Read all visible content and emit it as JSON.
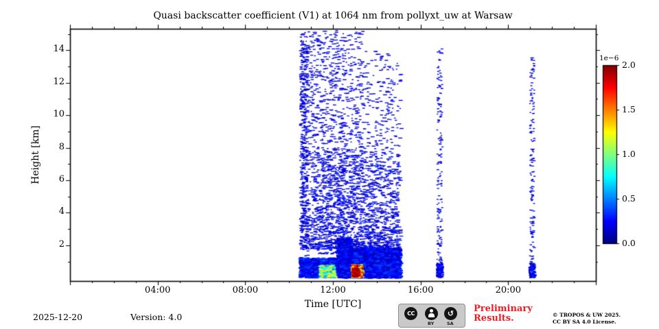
{
  "figure": {
    "background_color": "#ffffff",
    "footer": {
      "date": "2025-12-20",
      "version": "Version: 4.0",
      "preliminary_line1": "Preliminary",
      "preliminary_line2": "Results.",
      "preliminary_color": "#ed1c24",
      "copyright_line1": "© TROPOS & UW 2025.",
      "copyright_line2": "CC BY SA 4.0 License.",
      "license_badge": {
        "cc_label": "CC",
        "by_label": "BY",
        "sa_label": "SA",
        "sa_glyph": "↺"
      }
    }
  },
  "chart_data": {
    "type": "heatmap",
    "title": "Quasi backscatter coefficient (V1) at 1064 nm from pollyxt_uw at Warsaw",
    "xlabel": "Time [UTC]",
    "ylabel": "Height [km]",
    "xlim_hours": [
      0,
      24
    ],
    "ylim_km": [
      0,
      15.3
    ],
    "grid": false,
    "plot_background": "#ffffff",
    "point_color_low": "#0000e0",
    "xticks": [
      {
        "t": 4,
        "label": "04:00"
      },
      {
        "t": 8,
        "label": "08:00"
      },
      {
        "t": 12,
        "label": "12:00"
      },
      {
        "t": 16,
        "label": "16:00"
      },
      {
        "t": 20,
        "label": "20:00"
      }
    ],
    "yticks": [
      {
        "h": 2,
        "label": "2"
      },
      {
        "h": 4,
        "label": "4"
      },
      {
        "h": 6,
        "label": "6"
      },
      {
        "h": 8,
        "label": "8"
      },
      {
        "h": 10,
        "label": "10"
      },
      {
        "h": 12,
        "label": "12"
      },
      {
        "h": 14,
        "label": "14"
      }
    ],
    "colorbar": {
      "exponent_label": "1e−6",
      "vmin": 0.0,
      "vmax": 2.0,
      "colormap": "jet",
      "position": "right",
      "ticks": [
        {
          "v": 0.0,
          "label": "0.0"
        },
        {
          "v": 0.5,
          "label": "0.5"
        },
        {
          "v": 1.0,
          "label": "1.0"
        },
        {
          "v": 1.5,
          "label": "1.5"
        },
        {
          "v": 2.0,
          "label": "2.0"
        }
      ]
    },
    "regions": [
      {
        "name": "upper-speckle-early",
        "t": [
          10.45,
          13.3
        ],
        "h": [
          1.8,
          15.25
        ],
        "n": 1600,
        "v": [
          0.08,
          0.3
        ],
        "hbias": 1.35,
        "dash": [
          2,
          6
        ],
        "dh": 1.4
      },
      {
        "name": "upper-speckle-late",
        "t": [
          13.3,
          15.05
        ],
        "h": [
          1.8,
          14.0
        ],
        "n": 650,
        "v": [
          0.08,
          0.3
        ],
        "hbias": 1.9,
        "dash": [
          2,
          6
        ],
        "dh": 1.4
      },
      {
        "name": "left-edge-column",
        "t": [
          10.45,
          10.8
        ],
        "h": [
          1.2,
          14.6
        ],
        "n": 330,
        "v": [
          0.08,
          0.3
        ],
        "hbias": 1.0,
        "dash": [
          2,
          5
        ],
        "dh": 1.4
      },
      {
        "name": "mid-band",
        "t": [
          11.1,
          14.95
        ],
        "h": [
          1.5,
          7.8
        ],
        "n": 800,
        "v": [
          0.08,
          0.35
        ],
        "hbias": 1.3,
        "dash": [
          2,
          6
        ],
        "dh": 1.5
      },
      {
        "name": "bottom-band-left",
        "t": [
          10.42,
          12.3
        ],
        "h": [
          0.05,
          1.25
        ],
        "n": 1100,
        "v": [
          0.1,
          0.4
        ],
        "hbias": 1.0,
        "dash": [
          2,
          6
        ],
        "dh": 2.2
      },
      {
        "name": "bottom-band-right",
        "t": [
          12.3,
          15.0
        ],
        "h": [
          0.05,
          1.85
        ],
        "n": 3000,
        "v": [
          0.08,
          0.4
        ],
        "hbias": 1.15,
        "dash": [
          3,
          7
        ],
        "dh": 2.4
      },
      {
        "name": "tall-blob-1230",
        "t": [
          12.15,
          12.8
        ],
        "h": [
          0.8,
          2.5
        ],
        "n": 600,
        "v": [
          0.08,
          0.35
        ],
        "hbias": 1.2,
        "dash": [
          2,
          6
        ],
        "dh": 2.0
      },
      {
        "name": "surface-green-patch",
        "t": [
          11.35,
          12.05
        ],
        "h": [
          0.08,
          0.8
        ],
        "n": 380,
        "v": [
          0.5,
          1.4
        ],
        "hbias": 1.0,
        "dash": [
          2,
          5
        ],
        "dh": 2.4
      },
      {
        "name": "surface-hot-patch",
        "t": [
          12.8,
          13.3
        ],
        "h": [
          0.08,
          0.85
        ],
        "n": 300,
        "v": [
          0.9,
          2.0
        ],
        "hbias": 1.0,
        "dash": [
          2,
          5
        ],
        "dh": 2.4
      },
      {
        "name": "surface-red-core",
        "t": [
          12.86,
          13.12
        ],
        "h": [
          0.12,
          0.62
        ],
        "n": 160,
        "v": [
          1.8,
          2.0
        ],
        "hbias": 1.0,
        "dash": [
          2,
          5
        ],
        "dh": 2.6
      },
      {
        "name": "stripe-1650",
        "t": [
          16.72,
          16.95
        ],
        "h": [
          0.15,
          14.2
        ],
        "n": 190,
        "v": [
          0.08,
          0.3
        ],
        "hbias": 1.15,
        "dash": [
          2,
          4
        ],
        "dh": 1.4
      },
      {
        "name": "stripe-1650-base",
        "t": [
          16.7,
          16.98
        ],
        "h": [
          0.05,
          0.9
        ],
        "n": 90,
        "v": [
          0.1,
          0.35
        ],
        "hbias": 1.0,
        "dash": [
          2,
          4
        ],
        "dh": 2.2
      },
      {
        "name": "stripe-2100",
        "t": [
          20.95,
          21.15
        ],
        "h": [
          0.15,
          13.6
        ],
        "n": 170,
        "v": [
          0.08,
          0.3
        ],
        "hbias": 1.15,
        "dash": [
          2,
          4
        ],
        "dh": 1.4
      },
      {
        "name": "stripe-2100-base",
        "t": [
          20.92,
          21.18
        ],
        "h": [
          0.05,
          0.9
        ],
        "n": 90,
        "v": [
          0.1,
          0.35
        ],
        "hbias": 1.0,
        "dash": [
          2,
          4
        ],
        "dh": 2.2
      }
    ]
  }
}
